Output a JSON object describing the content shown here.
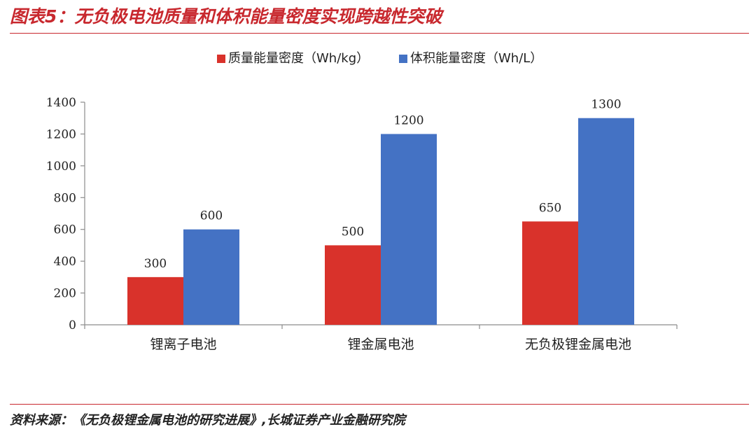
{
  "figure": {
    "title": "图表5：无负极电池质量和体积能量密度实现跨越性突破",
    "source": "资料来源：《无负极锂金属电池的研究进展》,长城证券产业金融研究院"
  },
  "colors": {
    "accent": "#c8282e",
    "series_red": "#d9322b",
    "series_blue": "#4472c4",
    "axis": "#8c8c8c"
  },
  "chart_data": {
    "type": "bar",
    "categories": [
      "锂离子电池",
      "锂金属电池",
      "无负极锂金属电池"
    ],
    "series": [
      {
        "name": "质量能量密度（Wh/kg）",
        "values": [
          300,
          500,
          650
        ],
        "color": "#d9322b"
      },
      {
        "name": "体积能量密度（Wh/L）",
        "values": [
          600,
          1200,
          1300
        ],
        "color": "#4472c4"
      }
    ],
    "ylim": [
      0,
      1400
    ],
    "yticks": [
      0,
      200,
      400,
      600,
      800,
      1000,
      1200,
      1400
    ],
    "grid": false,
    "legend": "top-center"
  }
}
